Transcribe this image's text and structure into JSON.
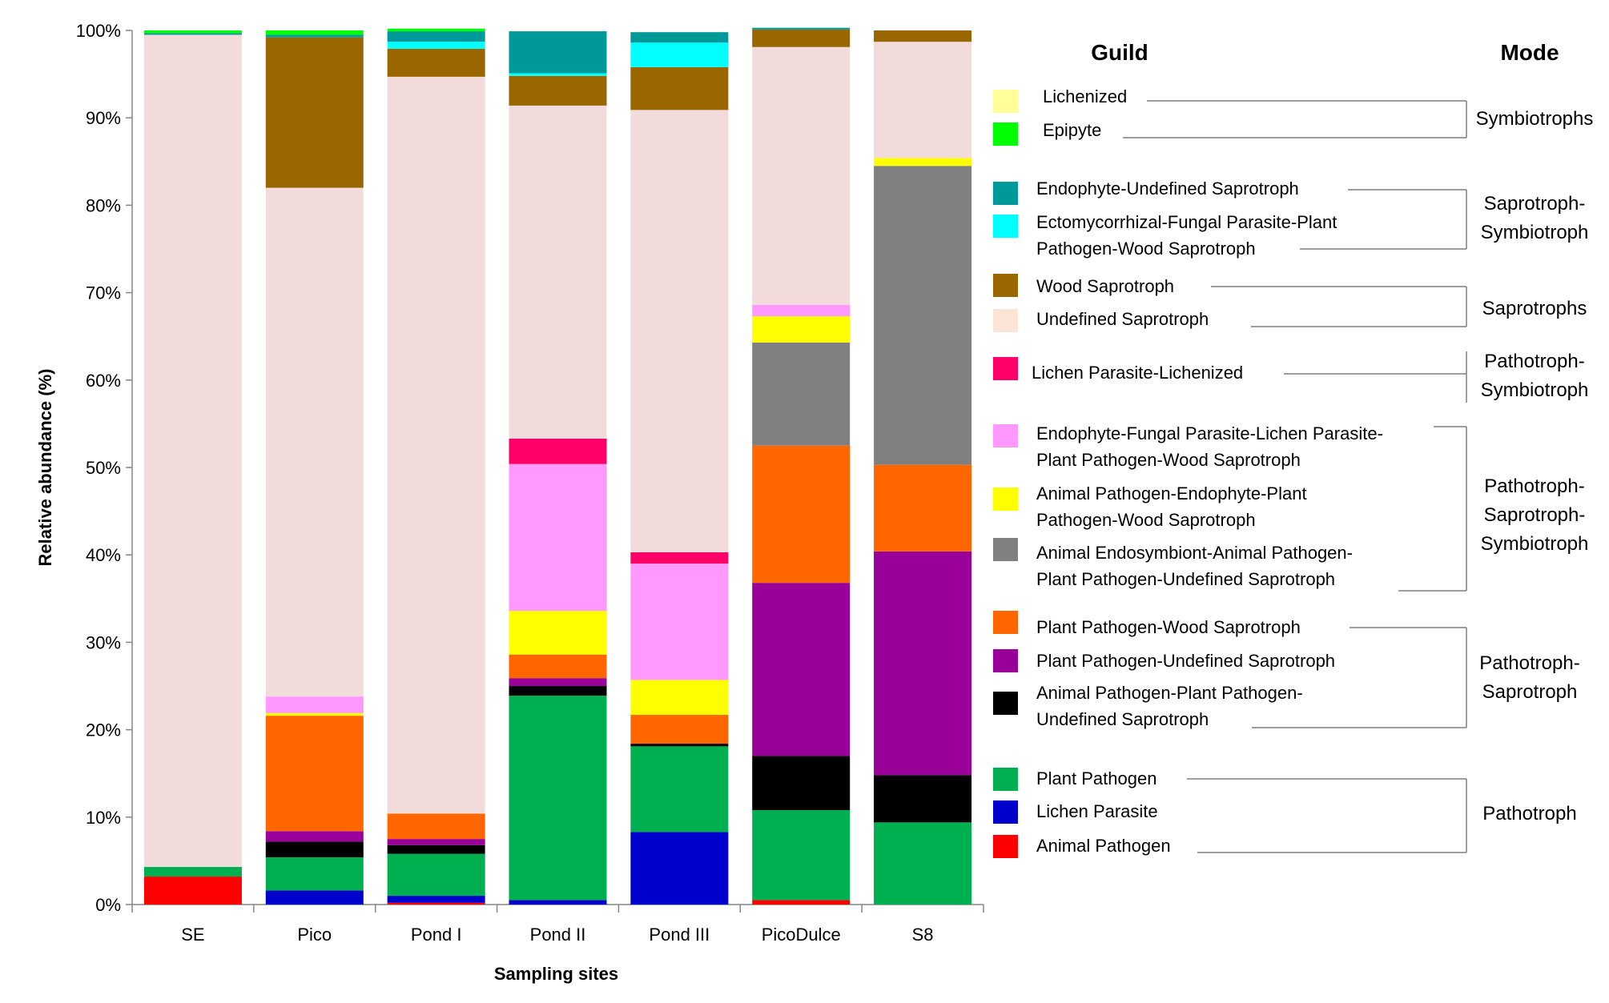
{
  "chart_data": {
    "type": "bar",
    "stacked": true,
    "percent": true,
    "title": "",
    "xlabel": "Sampling sites",
    "ylabel": "Relative abundance (%)",
    "ylim": [
      0,
      100
    ],
    "yticks": [
      "0%",
      "10%",
      "20%",
      "30%",
      "40%",
      "50%",
      "60%",
      "70%",
      "80%",
      "90%",
      "100%"
    ],
    "categories": [
      "SE",
      "Pico",
      "Pond I",
      "Pond II",
      "Pond III",
      "PicoDulce",
      "S8"
    ],
    "series": [
      {
        "name": "Animal Pathogen",
        "color": "#ff0000",
        "values": [
          3.2,
          0,
          0.2,
          0,
          0,
          0.5,
          0
        ]
      },
      {
        "name": "Lichen Parasite",
        "color": "#0000cc",
        "values": [
          0,
          1.6,
          0.8,
          0.5,
          8.3,
          0,
          0
        ]
      },
      {
        "name": "Plant Pathogen",
        "color": "#00b050",
        "values": [
          1.1,
          3.8,
          4.8,
          23.4,
          9.8,
          10.3,
          9.4
        ]
      },
      {
        "name": "Animal Pathogen-Plant Pathogen-Undefined Saprotroph",
        "color": "#000000",
        "values": [
          0,
          1.8,
          1.0,
          1.1,
          0.3,
          6.2,
          5.4
        ]
      },
      {
        "name": "Plant Pathogen-Undefined Saprotroph",
        "color": "#990099",
        "values": [
          0,
          1.2,
          0.7,
          0.9,
          0,
          19.8,
          25.6
        ]
      },
      {
        "name": "Plant Pathogen-Wood Saprotroph",
        "color": "#ff6600",
        "values": [
          0,
          13.2,
          2.9,
          2.7,
          3.3,
          15.7,
          9.9
        ]
      },
      {
        "name": "Animal Endosymbiont-Animal Pathogen-Plant Pathogen-Undefined Saprotroph",
        "color": "#808080",
        "values": [
          0,
          0,
          0,
          0,
          0,
          11.8,
          34.2
        ]
      },
      {
        "name": "Animal Pathogen-Endophyte-Plant Pathogen-Wood Saprotroph",
        "color": "#ffff00",
        "values": [
          0,
          0.3,
          0,
          5.0,
          4.0,
          3.0,
          0.9
        ]
      },
      {
        "name": "Endophyte-Fungal Parasite-Lichen Parasite-Plant Pathogen-Wood Saprotroph",
        "color": "#ff99ff",
        "values": [
          0,
          1.9,
          0,
          16.8,
          13.3,
          1.3,
          0
        ]
      },
      {
        "name": "Lichen Parasite-Lichenized",
        "color": "#ff0066",
        "values": [
          0,
          0,
          0,
          2.9,
          1.3,
          0,
          0
        ]
      },
      {
        "name": "Undefined Saprotroph",
        "color": "#f2dcdb",
        "values": [
          95.2,
          58.2,
          84.3,
          38.1,
          50.6,
          29.5,
          13.3
        ]
      },
      {
        "name": "Wood Saprotroph",
        "color": "#996600",
        "values": [
          0,
          17.2,
          3.2,
          3.4,
          4.9,
          2.0,
          1.3
        ]
      },
      {
        "name": "Ectomycorrhizal-Fungal Parasite-Plant Pathogen-Wood Saprotroph",
        "color": "#00ffff",
        "values": [
          0,
          0,
          0.8,
          0.3,
          2.8,
          0,
          0
        ]
      },
      {
        "name": "Endophyte-Undefined Saprotroph",
        "color": "#009999",
        "values": [
          0.2,
          0.3,
          1.2,
          4.8,
          1.2,
          0.2,
          0
        ]
      },
      {
        "name": "Epipyte",
        "color": "#00ff00",
        "values": [
          0.3,
          0.5,
          0.3,
          0,
          0,
          0,
          0
        ]
      },
      {
        "name": "Lichenized",
        "color": "#ffff99",
        "values": [
          0,
          0,
          0,
          0,
          0,
          0,
          0
        ]
      }
    ]
  },
  "legend": {
    "guild_header": "Guild",
    "mode_header": "Mode",
    "items": [
      {
        "lines": [
          "Lichenized"
        ],
        "color": "#ffff99"
      },
      {
        "lines": [
          "Epipyte"
        ],
        "color": "#00ff00"
      },
      {
        "lines": [
          "Endophyte-Undefined Saprotroph"
        ],
        "color": "#009999"
      },
      {
        "lines": [
          "Ectomycorrhizal-Fungal Parasite-Plant",
          "Pathogen-Wood Saprotroph"
        ],
        "color": "#00ffff"
      },
      {
        "lines": [
          "Wood Saprotroph"
        ],
        "color": "#996600"
      },
      {
        "lines": [
          "Undefined Saprotroph"
        ],
        "color": "#fbe4d5"
      },
      {
        "lines": [
          "Lichen Parasite-Lichenized"
        ],
        "color": "#ff0066"
      },
      {
        "lines": [
          "Endophyte-Fungal Parasite-Lichen Parasite-",
          "Plant Pathogen-Wood Saprotroph"
        ],
        "color": "#ff99ff"
      },
      {
        "lines": [
          "Animal Pathogen-Endophyte-Plant",
          "Pathogen-Wood Saprotroph"
        ],
        "color": "#ffff00"
      },
      {
        "lines": [
          "Animal Endosymbiont-Animal Pathogen-",
          "Plant Pathogen-Undefined Saprotroph"
        ],
        "color": "#808080"
      },
      {
        "lines": [
          "Plant Pathogen-Wood Saprotroph"
        ],
        "color": "#ff6600"
      },
      {
        "lines": [
          "Plant Pathogen-Undefined Saprotroph"
        ],
        "color": "#990099"
      },
      {
        "lines": [
          "Animal Pathogen-Plant Pathogen-",
          "Undefined Saprotroph"
        ],
        "color": "#000000"
      },
      {
        "lines": [
          "Plant Pathogen"
        ],
        "color": "#00b050"
      },
      {
        "lines": [
          "Lichen Parasite"
        ],
        "color": "#0000cc"
      },
      {
        "lines": [
          "Animal Pathogen"
        ],
        "color": "#ff0000"
      }
    ],
    "modes": [
      {
        "lines": [
          "Symbiotrophs"
        ]
      },
      {
        "lines": [
          "Saprotroph-",
          "Symbiotroph"
        ]
      },
      {
        "lines": [
          "Saprotrophs"
        ]
      },
      {
        "lines": [
          "Pathotroph-",
          "Symbiotroph"
        ]
      },
      {
        "lines": [
          "Pathotroph-",
          "Saprotroph-",
          "Symbiotroph"
        ]
      },
      {
        "lines": [
          "Pathotroph-",
          "Saprotroph"
        ]
      },
      {
        "lines": [
          "Pathotroph"
        ]
      }
    ]
  }
}
